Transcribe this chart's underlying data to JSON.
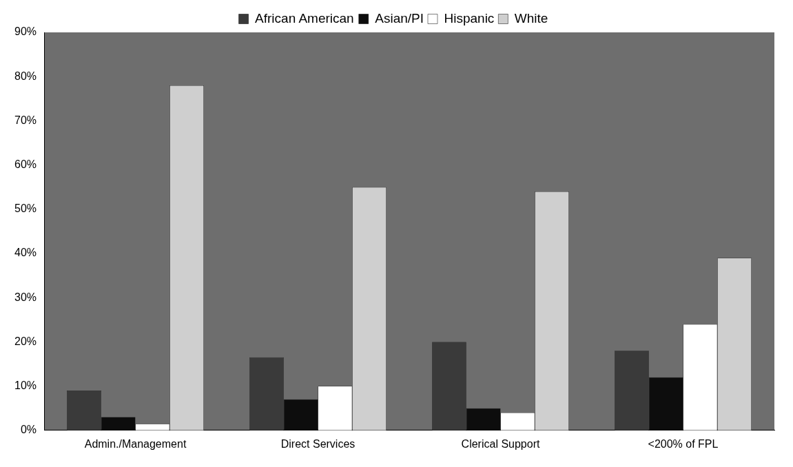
{
  "chart_data": {
    "type": "bar",
    "categories": [
      "Admin./Management",
      "Direct Services",
      "Clerical Support",
      "<200% of FPL"
    ],
    "series": [
      {
        "name": "African American",
        "color": "#3a3a3a",
        "values": [
          9,
          16.5,
          20,
          18
        ]
      },
      {
        "name": "Asian/PI",
        "color": "#0d0d0d",
        "values": [
          3,
          7,
          5,
          12
        ]
      },
      {
        "name": "Hispanic",
        "color": "#ffffff",
        "values": [
          1.5,
          10,
          4,
          24
        ]
      },
      {
        "name": "White",
        "color": "#cfcfcf",
        "values": [
          78,
          55,
          54,
          39
        ]
      }
    ],
    "ylim": [
      0,
      90
    ],
    "yticks": [
      {
        "value": 0,
        "label": "0%"
      },
      {
        "value": 10,
        "label": "10%"
      },
      {
        "value": 20,
        "label": "20%"
      },
      {
        "value": 30,
        "label": "30%"
      },
      {
        "value": 40,
        "label": "40%"
      },
      {
        "value": 50,
        "label": "50%"
      },
      {
        "value": 60,
        "label": "60%"
      },
      {
        "value": 70,
        "label": "70%"
      },
      {
        "value": 80,
        "label": "80%"
      },
      {
        "value": 90,
        "label": "90%"
      }
    ],
    "grid": false,
    "legend": "top"
  }
}
